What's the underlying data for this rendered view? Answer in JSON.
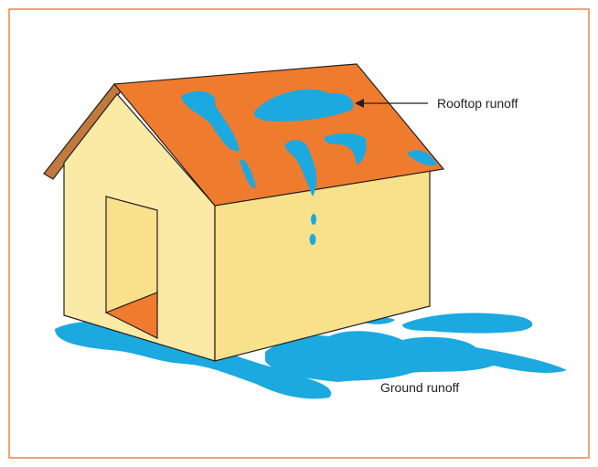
{
  "labels": {
    "rooftop": "Rooftop runoff",
    "ground": "Ground runoff"
  }
}
